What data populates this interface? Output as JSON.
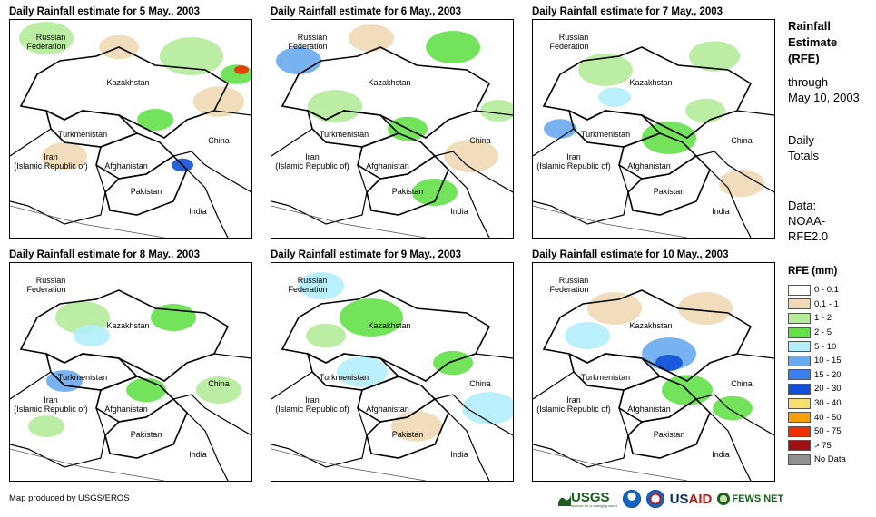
{
  "panels": [
    {
      "title": "Daily Rainfall estimate for 5 May., 2003"
    },
    {
      "title": "Daily Rainfall estimate for 6 May., 2003"
    },
    {
      "title": "Daily Rainfall estimate for 7 May., 2003"
    },
    {
      "title": "Daily Rainfall estimate for 8 May., 2003"
    },
    {
      "title": "Daily Rainfall estimate for 9 May., 2003"
    },
    {
      "title": "Daily Rainfall estimate for 10 May., 2003"
    }
  ],
  "map_labels": {
    "russia_1": "Russian",
    "russia_2": "Federation",
    "kazakhstan": "Kazakhstan",
    "turkmenistan": "Turkmenistan",
    "china": "China",
    "iran_1": "Iran",
    "iran_2": "(Islamic Republic of)",
    "afghanistan": "Afghanistan",
    "pakistan": "Pakistan",
    "india": "India"
  },
  "sidebar": {
    "title_1": "Rainfall",
    "title_2": "Estimate",
    "title_3": "(RFE)",
    "through": "through",
    "date": "May 10, 2003",
    "daily": "Daily",
    "totals": "Totals",
    "data": "Data:",
    "source_1": "NOAA-",
    "source_2": "RFE2.0"
  },
  "legend": {
    "title": "RFE (mm)",
    "items": [
      {
        "label": "0 - 0.1",
        "color": "#ffffff"
      },
      {
        "label": "0.1 - 1",
        "color": "#f0d9b5"
      },
      {
        "label": "1 - 2",
        "color": "#b4ec9a"
      },
      {
        "label": "2 - 5",
        "color": "#64e04a"
      },
      {
        "label": "5 - 10",
        "color": "#b2eefc"
      },
      {
        "label": "10 - 15",
        "color": "#6aaaf0"
      },
      {
        "label": "15 - 20",
        "color": "#3a7ef0"
      },
      {
        "label": "20 - 30",
        "color": "#1050d8"
      },
      {
        "label": "30 - 40",
        "color": "#f8e070"
      },
      {
        "label": "40 - 50",
        "color": "#f8a000"
      },
      {
        "label": "50 - 75",
        "color": "#f03000"
      },
      {
        "label": "> 75",
        "color": "#a01010"
      },
      {
        "label": "No Data",
        "color": "#909090"
      }
    ]
  },
  "footer": {
    "credit": "Map produced by USGS/EROS",
    "logo_usgs": "USGS",
    "logo_usgs_tag": "science for a changing world",
    "logo_usaid_1": "US",
    "logo_usaid_2": "AID",
    "logo_fews": "FEWS NET"
  },
  "icons": [
    "usgs-logo-icon",
    "noaa-logo-icon",
    "nws-logo-icon",
    "usaid-logo-icon",
    "fews-net-logo-icon"
  ]
}
